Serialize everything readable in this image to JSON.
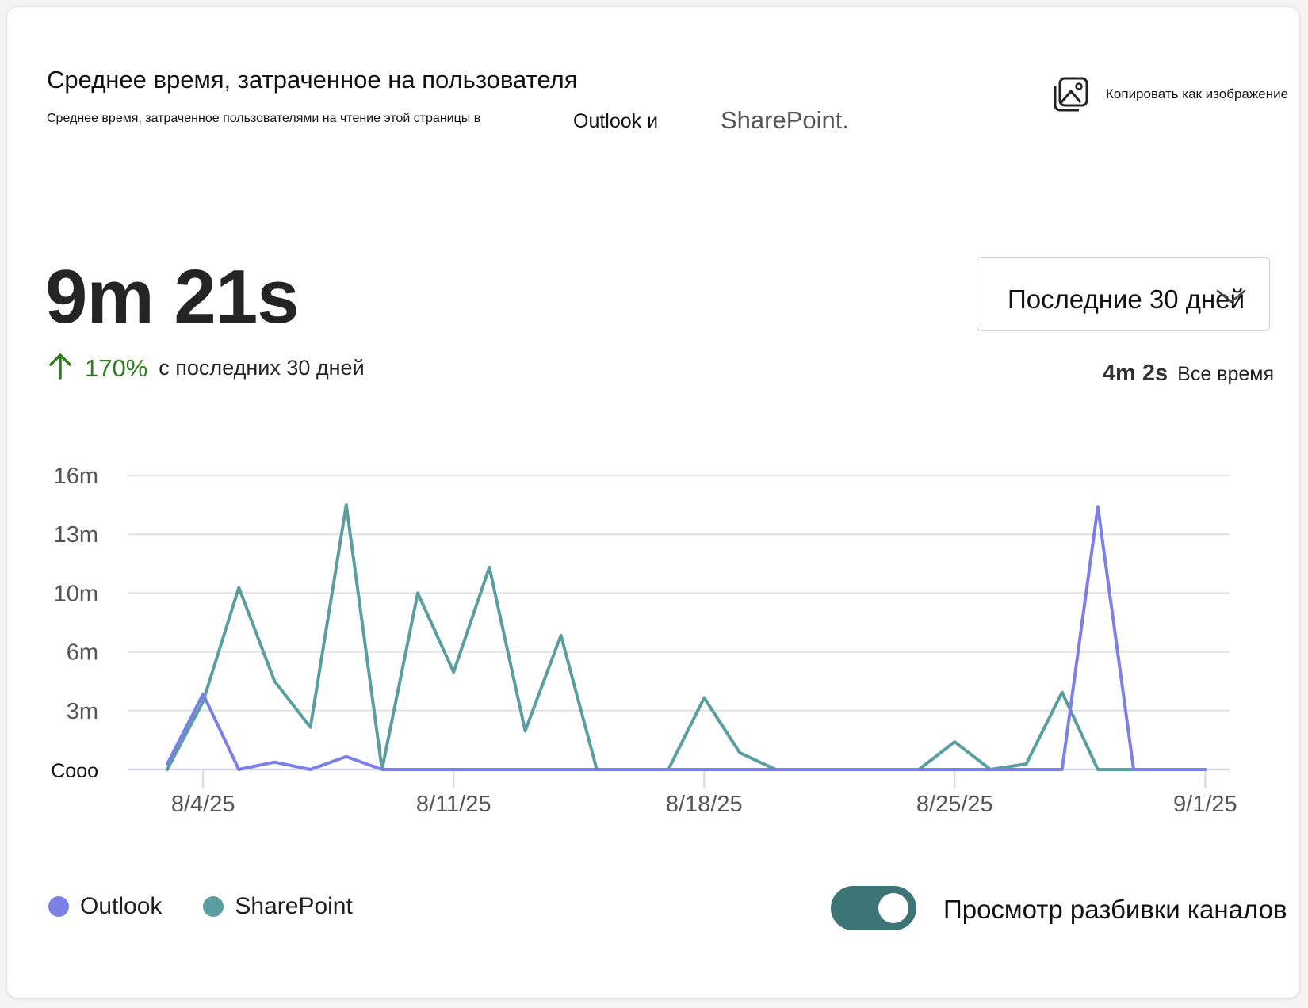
{
  "header": {
    "title": "Среднее время, затраченное на пользователя",
    "subtitle": "Среднее время, затраченное пользователями на чтение этой страницы в",
    "subtitle_outlook": "Outlook и",
    "subtitle_sharepoint": "SharePoint.",
    "copy_label": "Копировать как изображение",
    "copy_icon": "image-icon"
  },
  "summary": {
    "value": "9m 21s",
    "trend_icon": "arrow-up-icon",
    "trend_pct": "170%",
    "trend_text": "с последних 30 дней",
    "alltime_value": "4m 2s",
    "alltime_label": "Все время"
  },
  "range": {
    "selected": "Последние 30 дней",
    "chevron_icon": "chevron-down-icon"
  },
  "colors": {
    "outlook": "#7b7fe6",
    "sharepoint": "#5a9ea0",
    "toggle_on": "#3d7476",
    "trend_green": "#2f7d1f",
    "grid": "#e1e1e1"
  },
  "chart_data": {
    "type": "line",
    "x": [
      "8/3/25",
      "8/4/25",
      "8/5/25",
      "8/6/25",
      "8/7/25",
      "8/8/25",
      "8/9/25",
      "8/10/25",
      "8/11/25",
      "8/12/25",
      "8/13/25",
      "8/14/25",
      "8/15/25",
      "8/16/25",
      "8/17/25",
      "8/18/25",
      "8/19/25",
      "8/20/25",
      "8/21/25",
      "8/22/25",
      "8/23/25",
      "8/24/25",
      "8/25/25",
      "8/26/25",
      "8/27/25",
      "8/28/25",
      "8/29/25",
      "8/30/25",
      "8/31/25",
      "9/1/25"
    ],
    "x_tick_labels": [
      "8/4/25",
      "8/11/25",
      "8/18/25",
      "8/25/25",
      "9/1/25"
    ],
    "y_tick_labels": [
      "Cooo",
      "3m",
      "6m",
      "10m",
      "13m",
      "16m"
    ],
    "y_ticks_minutes": [
      0,
      3.2,
      6.4,
      9.6,
      12.8,
      16
    ],
    "ylim": [
      0,
      16
    ],
    "y_unit": "minutes",
    "grid": true,
    "legend_position": "bottom-left",
    "series": [
      {
        "name": "Outlook",
        "color_key": "outlook",
        "values": [
          0.3,
          4.1,
          0.0,
          0.4,
          0.0,
          0.7,
          0.0,
          0.0,
          0.0,
          0.0,
          0.0,
          0.0,
          0.0,
          0.0,
          0.0,
          0.0,
          0.0,
          0.0,
          0.0,
          0.0,
          0.0,
          0.0,
          0.0,
          0.0,
          0.0,
          0.0,
          14.3,
          0.0,
          0.0,
          0.0
        ]
      },
      {
        "name": "SharePoint",
        "color_key": "sharepoint",
        "values": [
          0.0,
          3.7,
          9.9,
          4.8,
          2.3,
          14.4,
          0.0,
          9.6,
          5.3,
          11.0,
          2.1,
          7.3,
          0.0,
          0.0,
          0.0,
          3.9,
          0.9,
          0.0,
          0.0,
          0.0,
          0.0,
          0.0,
          1.5,
          0.0,
          0.3,
          4.2,
          0.0,
          0.0,
          0.0,
          0.0
        ]
      }
    ]
  },
  "legend": {
    "outlook": "Outlook",
    "sharepoint": "SharePoint"
  },
  "toggle": {
    "label": "Просмотр разбивки каналов",
    "state": "on"
  }
}
